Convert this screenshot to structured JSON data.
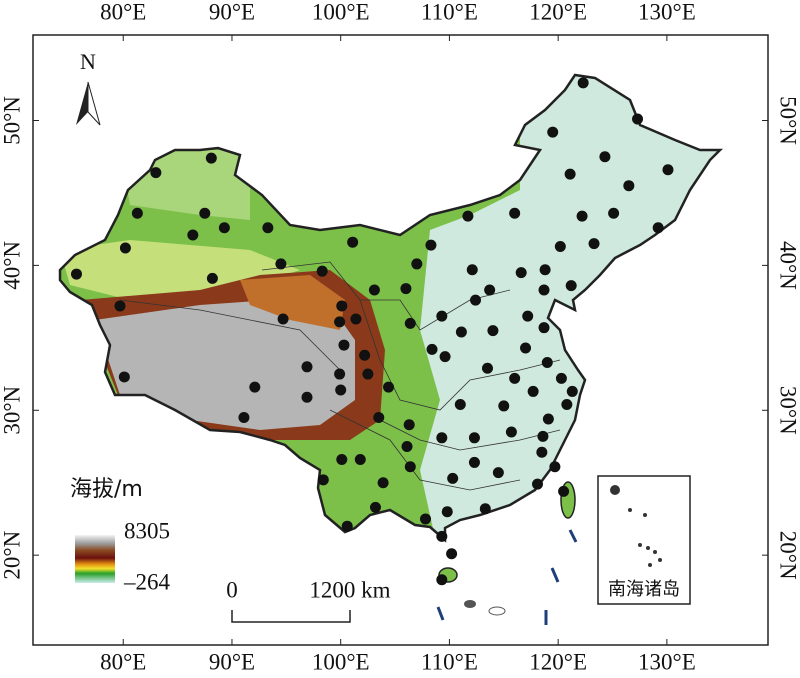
{
  "map": {
    "xlim": [
      71.7,
      139.3
    ],
    "ylim": [
      13.8,
      55.9
    ],
    "lon_ticks": [
      {
        "value": 80,
        "label": "80°E"
      },
      {
        "value": 90,
        "label": "90°E"
      },
      {
        "value": 100,
        "label": "100°E"
      },
      {
        "value": 110,
        "label": "110°E"
      },
      {
        "value": 120,
        "label": "120°E"
      },
      {
        "value": 130,
        "label": "130°E"
      }
    ],
    "lat_ticks": [
      {
        "value": 20,
        "label": "20°N"
      },
      {
        "value": 30,
        "label": "30°N"
      },
      {
        "value": 40,
        "label": "40°N"
      },
      {
        "value": 50,
        "label": "50°N"
      }
    ],
    "north_label": "N",
    "legend": {
      "title": "海拔/m",
      "max": 8305,
      "min": {
        "value": -264,
        "label": "–264"
      }
    },
    "scale_bar": {
      "start": "0",
      "end": "1200 km"
    },
    "inset_label": "南海诸岛",
    "stations": [
      [
        122.3,
        52.6
      ],
      [
        119.5,
        49.2
      ],
      [
        127.3,
        50.1
      ],
      [
        124.3,
        47.5
      ],
      [
        121.1,
        46.3
      ],
      [
        126.5,
        45.5
      ],
      [
        130.1,
        46.6
      ],
      [
        122.2,
        43.4
      ],
      [
        125.1,
        43.6
      ],
      [
        129.2,
        42.6
      ],
      [
        120.2,
        41.3
      ],
      [
        123.3,
        41.5
      ],
      [
        121.2,
        38.6
      ],
      [
        118.8,
        39.7
      ],
      [
        116.6,
        39.5
      ],
      [
        118.7,
        38.3
      ],
      [
        116.0,
        43.6
      ],
      [
        111.7,
        43.4
      ],
      [
        108.3,
        41.4
      ],
      [
        101.1,
        41.6
      ],
      [
        83.0,
        46.4
      ],
      [
        88.1,
        47.4
      ],
      [
        81.3,
        43.6
      ],
      [
        87.5,
        43.6
      ],
      [
        89.3,
        42.6
      ],
      [
        93.3,
        42.6
      ],
      [
        86.4,
        42.1
      ],
      [
        80.2,
        41.2
      ],
      [
        75.7,
        39.4
      ],
      [
        88.2,
        39.1
      ],
      [
        94.5,
        40.1
      ],
      [
        98.3,
        39.6
      ],
      [
        79.7,
        37.2
      ],
      [
        94.7,
        36.3
      ],
      [
        100.1,
        37.2
      ],
      [
        101.4,
        36.3
      ],
      [
        103.1,
        38.3
      ],
      [
        106.0,
        38.4
      ],
      [
        107.0,
        40.1
      ],
      [
        112.1,
        39.7
      ],
      [
        113.7,
        38.3
      ],
      [
        112.4,
        37.6
      ],
      [
        109.3,
        36.5
      ],
      [
        106.4,
        36.0
      ],
      [
        111.1,
        35.4
      ],
      [
        114.0,
        35.5
      ],
      [
        117.2,
        36.5
      ],
      [
        118.7,
        35.7
      ],
      [
        117.0,
        34.3
      ],
      [
        116.0,
        32.2
      ],
      [
        119.0,
        33.3
      ],
      [
        120.3,
        32.2
      ],
      [
        121.3,
        31.3
      ],
      [
        117.7,
        31.3
      ],
      [
        115.0,
        30.3
      ],
      [
        111.0,
        30.4
      ],
      [
        113.5,
        32.9
      ],
      [
        109.6,
        33.7
      ],
      [
        108.4,
        34.2
      ],
      [
        100.3,
        34.5
      ],
      [
        99.9,
        36.1
      ],
      [
        99.9,
        32.5
      ],
      [
        102.2,
        33.8
      ],
      [
        102.5,
        32.5
      ],
      [
        104.4,
        31.6
      ],
      [
        106.3,
        29.0
      ],
      [
        100.0,
        31.4
      ],
      [
        96.9,
        30.9
      ],
      [
        96.9,
        33.0
      ],
      [
        92.1,
        31.6
      ],
      [
        91.1,
        29.5
      ],
      [
        80.1,
        32.3
      ],
      [
        103.5,
        29.5
      ],
      [
        109.3,
        28.1
      ],
      [
        112.3,
        28.1
      ],
      [
        115.7,
        28.5
      ],
      [
        118.6,
        28.2
      ],
      [
        120.8,
        30.4
      ],
      [
        119.1,
        29.4
      ],
      [
        106.1,
        27.5
      ],
      [
        100.1,
        26.6
      ],
      [
        101.8,
        26.6
      ],
      [
        103.9,
        25.0
      ],
      [
        106.4,
        26.1
      ],
      [
        112.3,
        26.4
      ],
      [
        114.5,
        25.7
      ],
      [
        118.5,
        27.1
      ],
      [
        119.7,
        26.1
      ],
      [
        118.1,
        24.9
      ],
      [
        110.3,
        25.3
      ],
      [
        113.3,
        23.2
      ],
      [
        109.8,
        23.0
      ],
      [
        107.8,
        22.5
      ],
      [
        103.2,
        23.3
      ],
      [
        100.6,
        22.0
      ],
      [
        98.4,
        25.2
      ],
      [
        109.3,
        21.3
      ],
      [
        110.2,
        20.1
      ],
      [
        109.3,
        18.3
      ],
      [
        120.5,
        24.4
      ]
    ]
  }
}
